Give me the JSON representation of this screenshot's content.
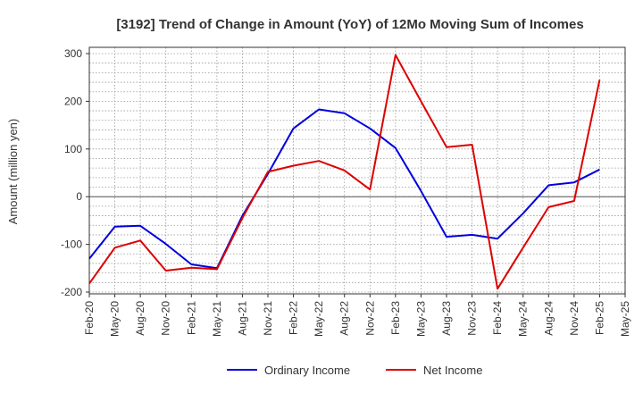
{
  "chart_data": {
    "type": "line",
    "title": "[3192]  Trend of Change in Amount (YoY) of 12Mo Moving Sum of Incomes",
    "ylabel": "Amount (million yen)",
    "xlabel": "",
    "ylim": [
      -200,
      300
    ],
    "yticks": [
      300,
      200,
      100,
      0,
      -100,
      -200
    ],
    "grid": true,
    "legend_position": "bottom",
    "categories": [
      "Feb-20",
      "May-20",
      "Aug-20",
      "Nov-20",
      "Feb-21",
      "May-21",
      "Aug-21",
      "Nov-21",
      "Feb-22",
      "May-22",
      "Aug-22",
      "Nov-22",
      "Feb-23",
      "May-23",
      "Aug-23",
      "Nov-23",
      "Feb-24",
      "May-24",
      "Aug-24",
      "Nov-24",
      "Feb-25",
      "May-25"
    ],
    "series": [
      {
        "name": "Ordinary Income",
        "color": "#0000dd",
        "values": [
          -130,
          -63,
          -61,
          -99,
          -142,
          -150,
          -40,
          48,
          143,
          183,
          175,
          143,
          102,
          12,
          -84,
          -80,
          -88,
          -35,
          24,
          30,
          57,
          null
        ]
      },
      {
        "name": "Net Income",
        "color": "#dd0000",
        "values": [
          -182,
          -107,
          -92,
          -155,
          -149,
          -152,
          -45,
          52,
          65,
          75,
          55,
          15,
          297,
          200,
          104,
          109,
          -193,
          -107,
          -22,
          -9,
          245,
          null
        ]
      }
    ]
  }
}
